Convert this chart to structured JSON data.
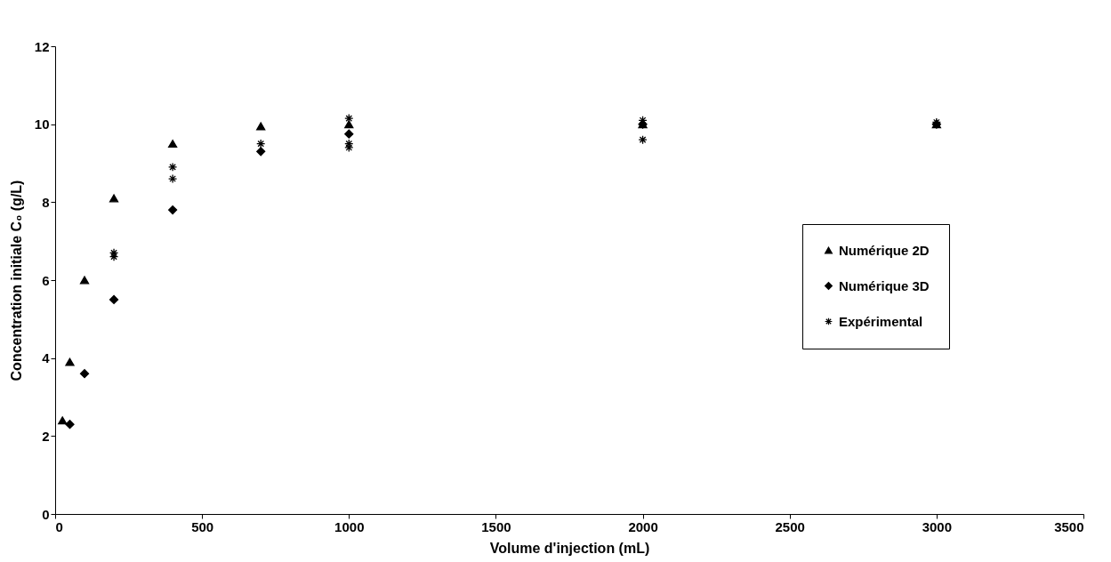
{
  "chart_data": {
    "type": "scatter",
    "xlabel": "Volume d'injection (mL)",
    "ylabel": "Concentration initiale C₀ (g/L)",
    "xlim": [
      0,
      3500
    ],
    "xticks": [
      0,
      500,
      1000,
      1500,
      2000,
      2500,
      3000,
      3500
    ],
    "ylim": [
      0,
      12
    ],
    "yticks": [
      0,
      2,
      4,
      6,
      8,
      10,
      12
    ],
    "grid": false,
    "legend": "right",
    "series": [
      {
        "name": "Numérique 2D",
        "color": "#000000",
        "marker": "triangle",
        "x": [
          25,
          50,
          100,
          200,
          400,
          700,
          1000,
          2000,
          3000
        ],
        "values": [
          2.4,
          3.9,
          6.0,
          8.1,
          9.5,
          9.95,
          10.0,
          10.0,
          10.0
        ]
      },
      {
        "name": "Numérique 3D",
        "color": "#000000",
        "marker": "diamond",
        "x": [
          50,
          100,
          200,
          400,
          700,
          1000,
          2000,
          3000
        ],
        "values": [
          2.3,
          3.6,
          5.5,
          7.8,
          9.3,
          9.75,
          10.0,
          10.0
        ]
      },
      {
        "name": "Expérimental",
        "color": "#000000",
        "marker": "cross",
        "x": [
          200,
          200,
          400,
          400,
          700,
          1000,
          1000,
          1000,
          2000,
          2000,
          3000
        ],
        "values": [
          6.7,
          6.6,
          8.9,
          8.6,
          9.5,
          10.15,
          9.5,
          9.4,
          10.1,
          9.6,
          10.05
        ]
      }
    ]
  }
}
